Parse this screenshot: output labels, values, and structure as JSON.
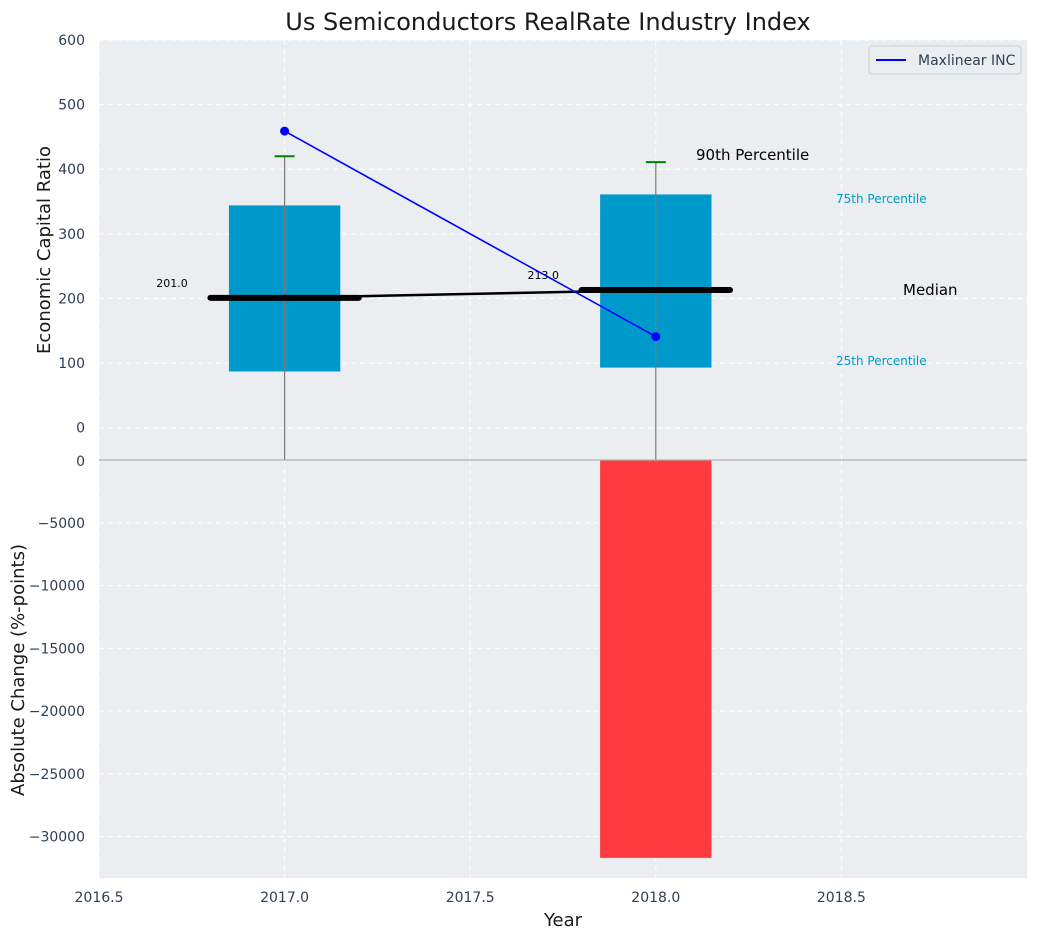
{
  "chart_data": {
    "type": "bar",
    "title": "Us Semiconductors RealRate Industry Index",
    "xlabel": "Year",
    "x_ticks": [
      "2016.5",
      "2017.0",
      "2017.5",
      "2018.0",
      "2018.5"
    ],
    "xlim": [
      2016.5,
      2019.0
    ],
    "colors": {
      "background": "#eaeef0",
      "box": "#0099cc",
      "median": "#000000",
      "series_line": "#0000ff",
      "percentile_90": "#008000",
      "negative_bar": "#ff3b3f",
      "percentile_text": "#0099cc"
    },
    "top_panel": {
      "ylabel": "Economic Capital Ratio",
      "ylim": [
        -50,
        600
      ],
      "y_ticks": [
        "0",
        "100",
        "200",
        "300",
        "400",
        "500",
        "600"
      ],
      "years": [
        2017.0,
        2018.0
      ],
      "percentile_25": [
        87,
        93
      ],
      "percentile_75": [
        344,
        361
      ],
      "median": [
        201,
        213
      ],
      "percentile_90": [
        420,
        411
      ],
      "median_labels": [
        "201.0",
        "213.0"
      ],
      "series": [
        {
          "name": "Maxlinear INC",
          "x": [
            2017.0,
            2018.0
          ],
          "values": [
            459,
            141
          ]
        }
      ],
      "annotations": {
        "p90": "90th Percentile",
        "p75": "75th Percentile",
        "median": "Median",
        "p25": "25th Percentile"
      }
    },
    "bottom_panel": {
      "ylabel": "Absolute Change (%-points)",
      "ylim": [
        -33300,
        0
      ],
      "y_ticks": [
        "0",
        "−5000",
        "−10000",
        "−15000",
        "−20000",
        "−25000",
        "−30000"
      ],
      "bars": [
        {
          "x": 2018.0,
          "value": -31700
        }
      ]
    },
    "legend": {
      "placement": "top-right",
      "entries": [
        "Maxlinear INC"
      ]
    },
    "grid": true
  }
}
